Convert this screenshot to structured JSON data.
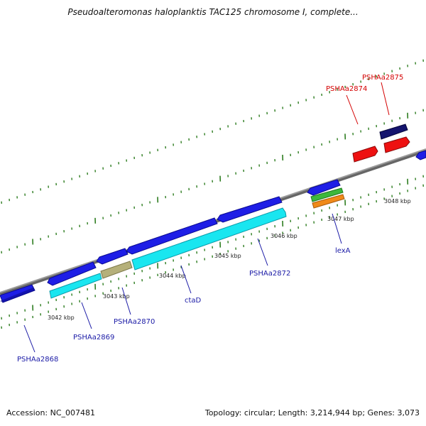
{
  "title": "Pseudoalteromonas haloplanktis TAC125 chromosome I, complete...",
  "footer": {
    "accession": "Accession: NC_007481",
    "topology": "Topology: circular; Length: 3,214,944 bp; Genes: 3,073"
  },
  "colors": {
    "backbone": "#888888",
    "tick": "#2e7d20",
    "label_blue": "#1a1aa6",
    "label_red": "#d40000",
    "cds_blue": "#1e1ee6",
    "cyan": "#19e6f0",
    "tan": "#b5b07a",
    "navy": "#14146e",
    "red": "#ee1111",
    "green": "#3cb83c",
    "orange": "#f08a1a"
  },
  "tick_labels": [
    "3042 kbp",
    "3043 kbp",
    "3044 kbp",
    "3045 kbp",
    "3046 kbp",
    "3047 kbp",
    "3048 kbp"
  ],
  "gene_labels": [
    {
      "text": "PSHAa2868",
      "color": "blue"
    },
    {
      "text": "PSHAa2869",
      "color": "blue"
    },
    {
      "text": "PSHAa2870",
      "color": "blue"
    },
    {
      "text": "ctaD",
      "color": "blue"
    },
    {
      "text": "PSHAa2872",
      "color": "blue"
    },
    {
      "text": "lexA",
      "color": "blue"
    },
    {
      "text": "PSHAa2874",
      "color": "red"
    },
    {
      "text": "PSHAa2875",
      "color": "red"
    }
  ]
}
